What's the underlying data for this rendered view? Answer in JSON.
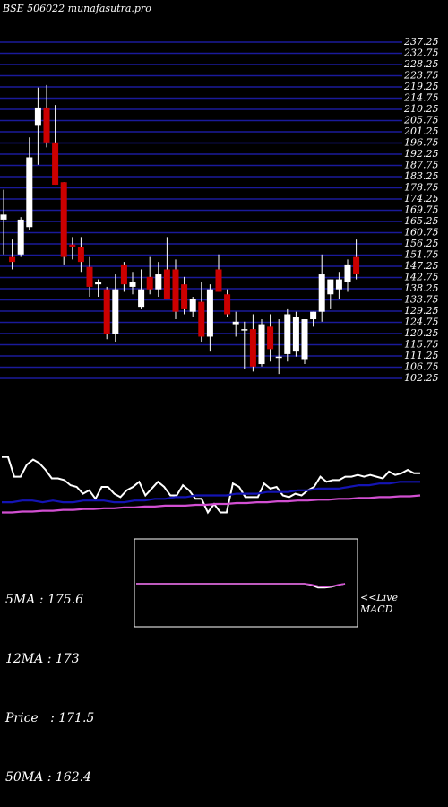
{
  "header": {
    "symbol": "BSE 506022",
    "site": "munafasutra.pro"
  },
  "stats": {
    "ma5": "5MA : 175.6",
    "ma12": "12MA : 173",
    "price": "Price   : 171.5",
    "ma50": "50MA : 162.4"
  },
  "live_label": [
    "<<Live",
    "MACD"
  ],
  "colors": {
    "background": "#000000",
    "grid": "#1a1a9a",
    "up_candle": "#ffffff",
    "down_candle": "#cc0000",
    "price_line": "#ffffff",
    "ma_blue": "#1414b4",
    "ma_magenta": "#d24fd2",
    "macd_line": "#ffffff",
    "signal_line": "#d24fd2"
  },
  "chart_data": [
    {
      "type": "candlestick",
      "title": "",
      "y_tick_labels": [
        "237.25",
        "232.75",
        "228.25",
        "223.75",
        "219.25",
        "214.75",
        "210.25",
        "205.75",
        "201.25",
        "196.75",
        "192.25",
        "187.75",
        "183.25",
        "178.75",
        "174.25",
        "169.75",
        "165.25",
        "160.75",
        "156.25",
        "151.75",
        "147.25",
        "142.75",
        "138.25",
        "133.75",
        "129.25",
        "124.75",
        "120.25",
        "115.75",
        "111.25",
        "106.75",
        "102.25"
      ],
      "ylim": [
        102.25,
        237.25
      ],
      "grid": true,
      "candles": [
        {
          "o": 166,
          "h": 178,
          "l": 152,
          "c": 168
        },
        {
          "o": 151,
          "h": 158,
          "l": 146,
          "c": 149
        },
        {
          "o": 152,
          "h": 167,
          "l": 151,
          "c": 166
        },
        {
          "o": 163,
          "h": 199,
          "l": 162,
          "c": 191
        },
        {
          "o": 204,
          "h": 219,
          "l": 188,
          "c": 211
        },
        {
          "o": 211,
          "h": 220,
          "l": 195,
          "c": 197
        },
        {
          "o": 197,
          "h": 212,
          "l": 180,
          "c": 180
        },
        {
          "o": 181,
          "h": 181,
          "l": 148,
          "c": 151
        },
        {
          "o": 156,
          "h": 159,
          "l": 150,
          "c": 155
        },
        {
          "o": 155,
          "h": 159,
          "l": 145,
          "c": 149
        },
        {
          "o": 147,
          "h": 151,
          "l": 135,
          "c": 139
        },
        {
          "o": 140,
          "h": 142,
          "l": 135,
          "c": 141
        },
        {
          "o": 138,
          "h": 139,
          "l": 118,
          "c": 120
        },
        {
          "o": 120,
          "h": 144,
          "l": 117,
          "c": 138
        },
        {
          "o": 148,
          "h": 149,
          "l": 137,
          "c": 140
        },
        {
          "o": 139,
          "h": 145,
          "l": 136,
          "c": 141
        },
        {
          "o": 131,
          "h": 146,
          "l": 130,
          "c": 138
        },
        {
          "o": 143,
          "h": 151,
          "l": 136,
          "c": 138
        },
        {
          "o": 138,
          "h": 149,
          "l": 135,
          "c": 144
        },
        {
          "o": 146,
          "h": 159,
          "l": 134,
          "c": 134
        },
        {
          "o": 146,
          "h": 150,
          "l": 126,
          "c": 129
        },
        {
          "o": 140,
          "h": 143,
          "l": 128,
          "c": 130
        },
        {
          "o": 129,
          "h": 135,
          "l": 127,
          "c": 134
        },
        {
          "o": 133,
          "h": 141,
          "l": 117,
          "c": 119
        },
        {
          "o": 119,
          "h": 140,
          "l": 113,
          "c": 138
        },
        {
          "o": 146,
          "h": 152,
          "l": 137,
          "c": 137
        },
        {
          "o": 136,
          "h": 138,
          "l": 127,
          "c": 128
        },
        {
          "o": 124,
          "h": 129,
          "l": 119,
          "c": 125
        },
        {
          "o": 122,
          "h": 125,
          "l": 106,
          "c": 122
        },
        {
          "o": 122,
          "h": 128,
          "l": 105,
          "c": 107
        },
        {
          "o": 108,
          "h": 126,
          "l": 107,
          "c": 124
        },
        {
          "o": 123,
          "h": 128,
          "l": 109,
          "c": 114
        },
        {
          "o": 111,
          "h": 126,
          "l": 104,
          "c": 111
        },
        {
          "o": 112,
          "h": 130,
          "l": 109,
          "c": 128
        },
        {
          "o": 113,
          "h": 129,
          "l": 111,
          "c": 127
        },
        {
          "o": 110,
          "h": 126,
          "l": 108,
          "c": 126
        },
        {
          "o": 126,
          "h": 129,
          "l": 123,
          "c": 129
        },
        {
          "o": 129,
          "h": 152,
          "l": 125,
          "c": 144
        },
        {
          "o": 136,
          "h": 142,
          "l": 130,
          "c": 142
        },
        {
          "o": 138,
          "h": 145,
          "l": 134,
          "c": 142
        },
        {
          "o": 141,
          "h": 150,
          "l": 137,
          "c": 148
        },
        {
          "o": 151,
          "h": 158,
          "l": 142,
          "c": 144
        }
      ]
    },
    {
      "type": "line",
      "title": "",
      "series": [
        {
          "values": [
            5,
            5,
            28,
            28,
            14,
            8,
            12,
            20,
            30,
            30,
            32,
            38,
            40,
            48,
            44,
            54,
            40,
            40,
            48,
            52,
            44,
            40,
            34,
            50,
            42,
            34,
            40,
            50,
            50,
            38,
            44,
            54,
            54,
            70,
            60,
            70,
            70,
            36,
            40,
            52,
            52,
            52,
            36,
            42,
            40,
            50,
            52,
            48,
            50,
            44,
            40,
            28,
            34,
            32,
            32,
            28,
            28,
            26,
            28,
            26,
            28,
            30,
            22,
            26,
            24,
            20,
            24,
            24
          ]
        },
        {
          "values": [
            58,
            58,
            56,
            56,
            58,
            56,
            58,
            58,
            56,
            56,
            56,
            58,
            58,
            56,
            56,
            54,
            54,
            52,
            52,
            50,
            50,
            50,
            50,
            48,
            48,
            48,
            46,
            46,
            46,
            44,
            44,
            42,
            42,
            42,
            40,
            38,
            38,
            36,
            36,
            34,
            34,
            34
          ]
        },
        {
          "values": [
            70,
            70,
            69,
            69,
            68,
            68,
            67,
            67,
            66,
            66,
            65,
            65,
            64,
            64,
            63,
            63,
            62,
            62,
            62,
            61,
            61,
            60,
            60,
            59,
            59,
            58,
            58,
            57,
            57,
            56,
            56,
            55,
            55,
            54,
            54,
            53,
            53,
            52,
            52,
            51,
            51,
            50
          ]
        }
      ]
    },
    {
      "type": "line",
      "title": "",
      "series": [
        {
          "values": [
            0,
            0,
            0,
            0,
            0,
            0,
            0,
            0,
            0,
            0,
            0,
            0,
            0,
            0,
            0,
            0,
            0,
            0,
            0,
            0,
            0,
            0,
            0,
            0,
            0,
            0,
            -0.5,
            -1.5,
            -1.5,
            -1.2,
            -0.5,
            0
          ]
        },
        {
          "values": [
            0,
            0,
            0,
            0,
            0,
            0,
            0,
            0,
            0,
            0,
            0,
            0,
            0,
            0,
            0,
            0,
            0,
            0,
            0,
            0,
            0,
            0,
            0,
            0,
            0,
            0,
            -0.3,
            -0.9,
            -1.1,
            -1.0,
            -0.4,
            0
          ]
        }
      ]
    }
  ]
}
